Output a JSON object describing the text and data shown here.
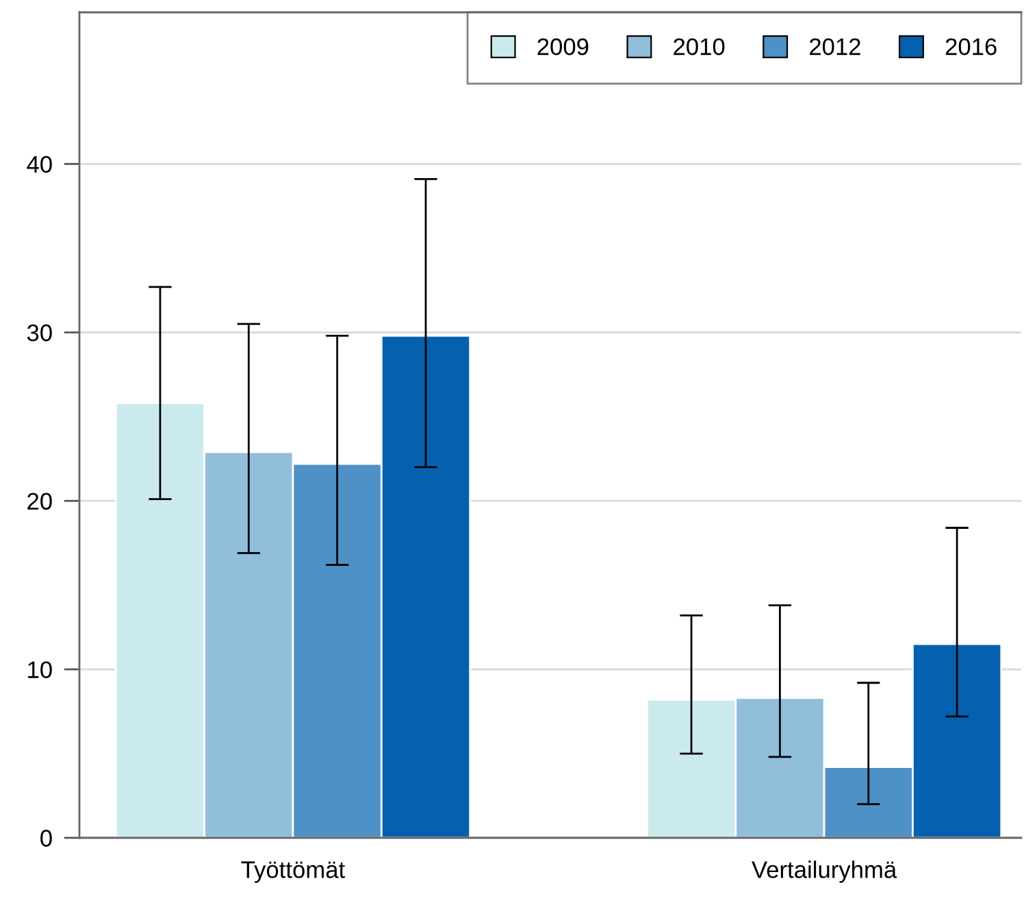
{
  "chart_data": {
    "type": "bar",
    "categories": [
      "Työttömät",
      "Vertailuryhmä"
    ],
    "series": [
      {
        "name": "2009",
        "color": "#cbeaed",
        "values": [
          25.8,
          8.2
        ],
        "errors": [
          [
            20.1,
            32.7
          ],
          [
            5.0,
            13.2
          ]
        ]
      },
      {
        "name": "2010",
        "color": "#91bedb",
        "values": [
          22.9,
          8.3
        ],
        "errors": [
          [
            16.9,
            30.5
          ],
          [
            4.8,
            13.8
          ]
        ]
      },
      {
        "name": "2012",
        "color": "#4e91c6",
        "values": [
          22.2,
          4.2
        ],
        "errors": [
          [
            16.2,
            29.8
          ],
          [
            2.0,
            9.2
          ]
        ]
      },
      {
        "name": "2016",
        "color": "#0561b0",
        "values": [
          29.8,
          11.5
        ],
        "errors": [
          [
            22.0,
            39.1
          ],
          [
            7.2,
            18.4
          ]
        ]
      }
    ],
    "ylim": [
      0,
      49
    ],
    "yticks": [
      0,
      10,
      20,
      30,
      40
    ],
    "grid": "y",
    "legend": "top right"
  }
}
